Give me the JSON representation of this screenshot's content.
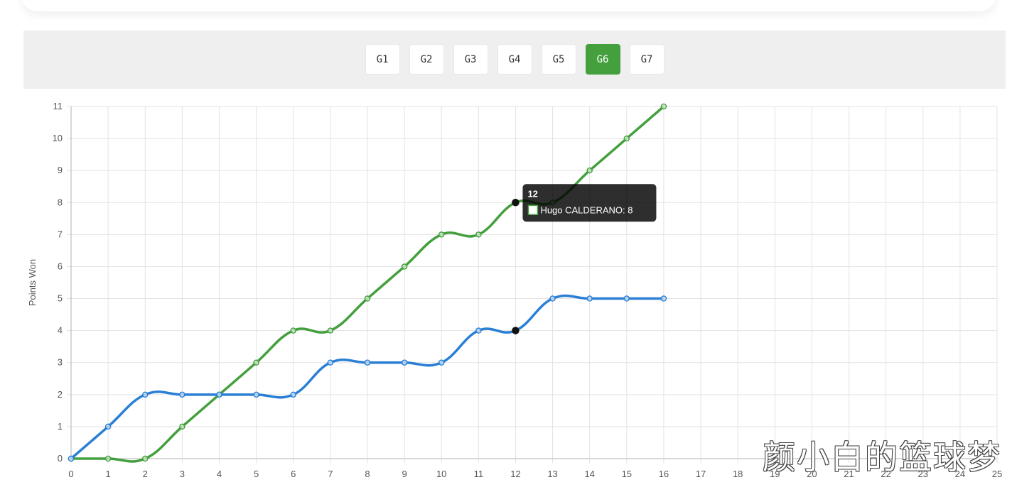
{
  "games": {
    "tabs": [
      {
        "label": "G1",
        "active": false
      },
      {
        "label": "G2",
        "active": false
      },
      {
        "label": "G3",
        "active": false
      },
      {
        "label": "G4",
        "active": false
      },
      {
        "label": "G5",
        "active": false
      },
      {
        "label": "G6",
        "active": true
      },
      {
        "label": "G7",
        "active": false
      }
    ]
  },
  "chart_data": {
    "type": "line",
    "ylabel": "Points Won",
    "xlabel": "",
    "xlim": [
      0,
      25
    ],
    "ylim": [
      0,
      11
    ],
    "x_ticks": [
      0,
      1,
      2,
      3,
      4,
      5,
      6,
      7,
      8,
      9,
      10,
      11,
      12,
      13,
      14,
      15,
      16,
      17,
      18,
      19,
      20,
      21,
      22,
      23,
      24,
      25
    ],
    "y_ticks": [
      0,
      1,
      2,
      3,
      4,
      5,
      6,
      7,
      8,
      9,
      10,
      11
    ],
    "grid": true,
    "series": [
      {
        "color": "#43a03d",
        "x": [
          0,
          1,
          2,
          3,
          4,
          5,
          6,
          7,
          8,
          9,
          10,
          11,
          12,
          13,
          14,
          15,
          16
        ],
        "values": [
          0,
          0,
          0,
          1,
          2,
          3,
          4,
          4,
          5,
          6,
          7,
          7,
          8,
          8,
          9,
          10,
          11
        ]
      },
      {
        "color": "#2a7fd4",
        "x": [
          0,
          1,
          2,
          3,
          4,
          5,
          6,
          7,
          8,
          9,
          10,
          11,
          12,
          13,
          14,
          15,
          16
        ],
        "values": [
          0,
          1,
          2,
          2,
          2,
          2,
          2,
          3,
          3,
          3,
          3,
          4,
          4,
          5,
          5,
          5,
          5
        ]
      }
    ],
    "tooltip": {
      "title": "12",
      "label": "Hugo CALDERANO: 8",
      "x": 12
    }
  },
  "watermark": "颜小白的篮球梦"
}
